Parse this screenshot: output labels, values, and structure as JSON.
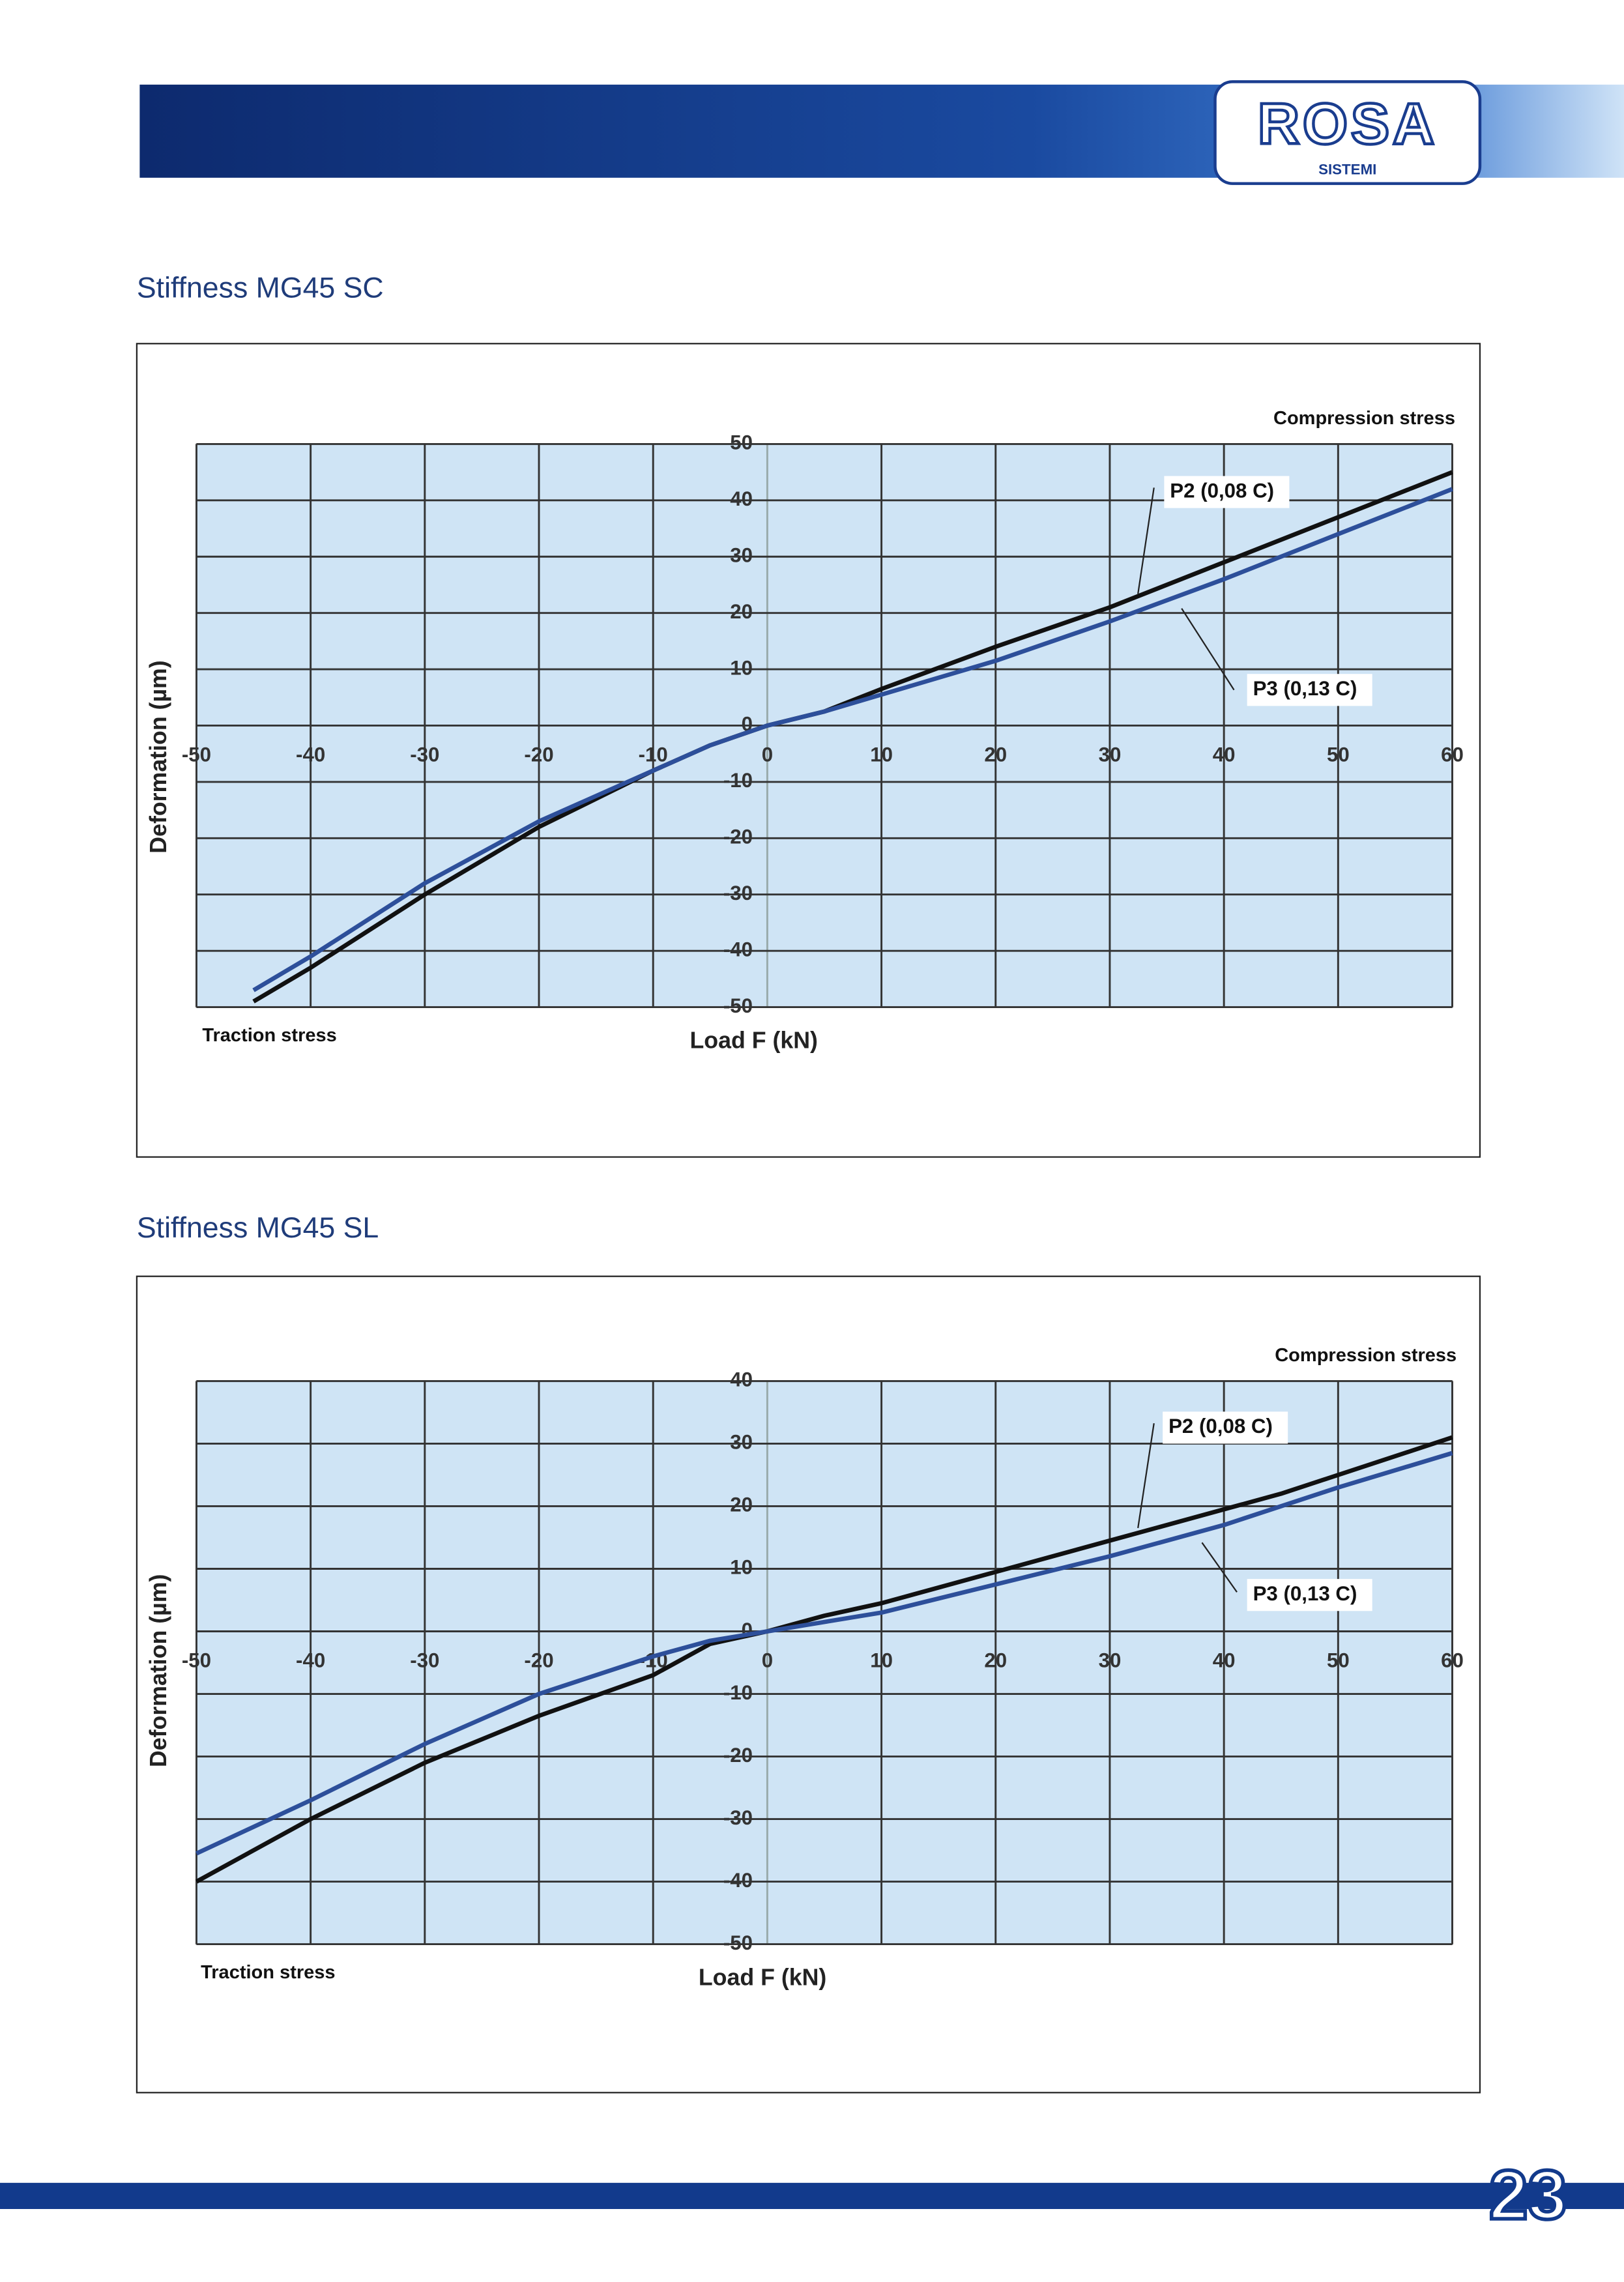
{
  "header": {
    "logo": "ROSA",
    "logo_sub": "SISTEMI"
  },
  "page_number": "23",
  "chart_data": [
    {
      "type": "line",
      "title": "Stiffness  MG45 SC",
      "x_label": "Load F (kN)",
      "y_label": "Deformation  (µm)",
      "annotations": [
        "Compression stress",
        "Traction stress"
      ],
      "xlim": [
        -50,
        60
      ],
      "xticks": [
        -50,
        -40,
        -30,
        -20,
        -10,
        0,
        10,
        20,
        30,
        40,
        50,
        60
      ],
      "ylim": [
        -50,
        50
      ],
      "yticks": [
        -50,
        -40,
        -30,
        -20,
        -10,
        0,
        10,
        20,
        30,
        40,
        50
      ],
      "grid": true,
      "background": "#cfe4f5",
      "series": [
        {
          "name": "P2 (0,08 C)",
          "color": "#111111",
          "x": [
            -45,
            -40,
            -30,
            -20,
            -10,
            -5,
            0,
            5,
            10,
            20,
            30,
            40,
            50,
            60
          ],
          "values": [
            -49,
            -43,
            -30,
            -18,
            -8,
            -3.5,
            0,
            2.5,
            6.5,
            14,
            21,
            29,
            37,
            45
          ]
        },
        {
          "name": "P3 (0,13 C)",
          "color": "#2d4f9a",
          "x": [
            -45,
            -40,
            -30,
            -20,
            -10,
            -5,
            0,
            5,
            10,
            20,
            30,
            40,
            50,
            60
          ],
          "values": [
            -47,
            -41,
            -28,
            -17,
            -8,
            -3.5,
            0,
            2.5,
            5.5,
            11.5,
            18.5,
            26,
            34,
            42
          ]
        }
      ]
    },
    {
      "type": "line",
      "title": "Stiffness  MG45 SL",
      "x_label": "Load F (kN)",
      "y_label": "Deformation  (µm)",
      "annotations": [
        "Compression stress",
        "Traction stress"
      ],
      "xlim": [
        -50,
        60
      ],
      "xticks": [
        -50,
        -40,
        -30,
        -20,
        -10,
        0,
        10,
        20,
        30,
        40,
        50,
        60
      ],
      "ylim": [
        -50,
        40
      ],
      "yticks": [
        -50,
        -40,
        -30,
        -20,
        -10,
        0,
        10,
        20,
        30,
        40
      ],
      "grid": true,
      "background": "#cfe4f5",
      "series": [
        {
          "name": "P2 (0,08 C)",
          "color": "#111111",
          "x": [
            -50,
            -40,
            -30,
            -20,
            -10,
            -5,
            0,
            5,
            10,
            20,
            30,
            40,
            45,
            60
          ],
          "values": [
            -40,
            -30,
            -21,
            -13.5,
            -7,
            -2,
            0,
            2.5,
            4.5,
            9.5,
            14.5,
            19.5,
            22,
            31
          ]
        },
        {
          "name": "P3 (0,13 C)",
          "color": "#2d4f9a",
          "x": [
            -50,
            -40,
            -30,
            -20,
            -10,
            -5,
            0,
            10,
            20,
            30,
            40,
            50,
            60
          ],
          "values": [
            -35.5,
            -27,
            -18,
            -10,
            -4,
            -1.5,
            0,
            3,
            7.5,
            12,
            17,
            23,
            28.5
          ]
        }
      ]
    }
  ]
}
